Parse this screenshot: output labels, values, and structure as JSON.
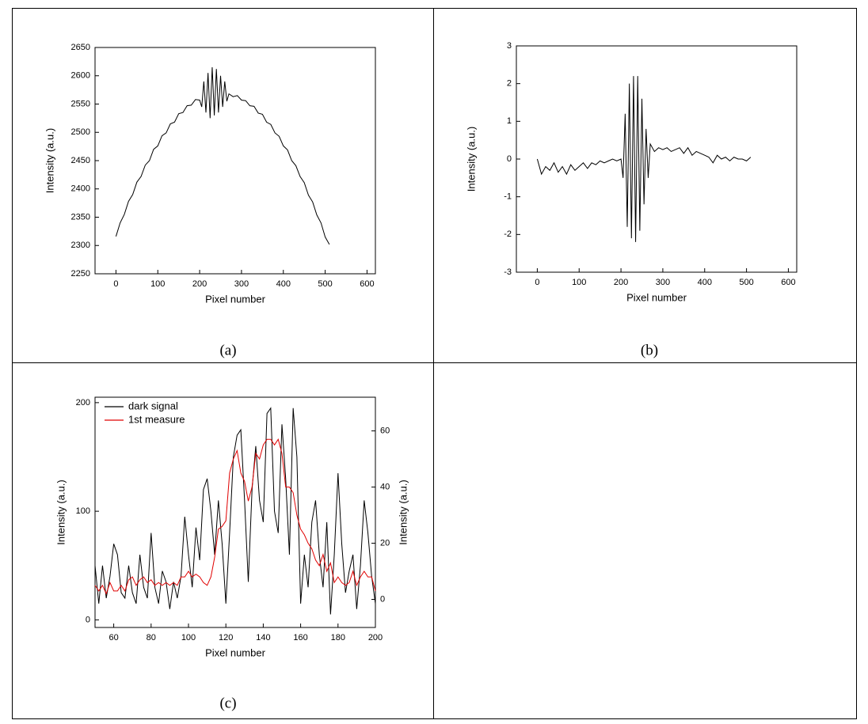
{
  "chart_data": [
    {
      "type": "line",
      "caption": "(a)",
      "xlabel": "Pixel number",
      "ylabel": "Intensity (a.u.)",
      "color": "#000000",
      "x": [
        0,
        10,
        20,
        30,
        40,
        50,
        60,
        70,
        80,
        90,
        100,
        110,
        120,
        130,
        140,
        150,
        160,
        170,
        180,
        190,
        200,
        205,
        210,
        215,
        220,
        225,
        230,
        235,
        240,
        245,
        250,
        255,
        260,
        265,
        270,
        280,
        290,
        300,
        310,
        320,
        330,
        340,
        350,
        360,
        370,
        380,
        390,
        400,
        410,
        420,
        430,
        440,
        450,
        460,
        470,
        480,
        490,
        500,
        510
      ],
      "values": [
        2316,
        2340,
        2355,
        2378,
        2390,
        2412,
        2422,
        2442,
        2450,
        2470,
        2476,
        2494,
        2499,
        2515,
        2518,
        2533,
        2535,
        2547,
        2548,
        2558,
        2557,
        2545,
        2590,
        2535,
        2605,
        2525,
        2615,
        2530,
        2612,
        2535,
        2600,
        2545,
        2590,
        2555,
        2568,
        2563,
        2565,
        2557,
        2556,
        2547,
        2546,
        2534,
        2532,
        2518,
        2514,
        2499,
        2493,
        2476,
        2469,
        2450,
        2441,
        2422,
        2411,
        2389,
        2377,
        2354,
        2340,
        2315,
        2302
      ],
      "xlim": [
        -50,
        620
      ],
      "ylim": [
        2250,
        2650
      ],
      "xticks": [
        0,
        100,
        200,
        300,
        400,
        500,
        600
      ],
      "yticks": [
        2250,
        2300,
        2350,
        2400,
        2450,
        2500,
        2550,
        2600,
        2650
      ]
    },
    {
      "type": "line",
      "caption": "(b)",
      "xlabel": "Pixel number",
      "ylabel": "Intensity (a.u.)",
      "color": "#000000",
      "x": [
        0,
        10,
        20,
        30,
        40,
        50,
        60,
        70,
        80,
        90,
        100,
        110,
        120,
        130,
        140,
        150,
        160,
        170,
        180,
        190,
        200,
        205,
        210,
        215,
        220,
        225,
        230,
        235,
        240,
        245,
        250,
        255,
        260,
        265,
        270,
        280,
        290,
        300,
        310,
        320,
        330,
        340,
        350,
        360,
        370,
        380,
        390,
        400,
        410,
        420,
        430,
        440,
        450,
        460,
        470,
        480,
        490,
        500,
        510
      ],
      "values": [
        0,
        -0.4,
        -0.2,
        -0.3,
        -0.1,
        -0.35,
        -0.2,
        -0.4,
        -0.15,
        -0.3,
        -0.2,
        -0.1,
        -0.25,
        -0.1,
        -0.15,
        -0.05,
        -0.1,
        -0.05,
        0,
        -0.05,
        0,
        -0.5,
        1.2,
        -1.8,
        2.0,
        -2.1,
        2.2,
        -2.2,
        2.2,
        -1.9,
        1.6,
        -1.2,
        0.8,
        -0.5,
        0.4,
        0.2,
        0.3,
        0.25,
        0.3,
        0.2,
        0.25,
        0.3,
        0.15,
        0.3,
        0.1,
        0.2,
        0.15,
        0.1,
        0.05,
        -0.1,
        0.1,
        0,
        0.05,
        -0.05,
        0.05,
        0,
        0,
        -0.05,
        0.05
      ],
      "xlim": [
        -50,
        620
      ],
      "ylim": [
        -3,
        3
      ],
      "xticks": [
        0,
        100,
        200,
        300,
        400,
        500,
        600
      ],
      "yticks": [
        -3,
        -2,
        -1,
        0,
        1,
        2,
        3
      ]
    },
    {
      "type": "line",
      "caption": "(c)",
      "xlabel": "Pixel number",
      "ylabel": "Intensity (a.u.)",
      "y2label": "Intensity (a.u.)",
      "x": [
        50,
        52,
        54,
        56,
        58,
        60,
        62,
        64,
        66,
        68,
        70,
        72,
        74,
        76,
        78,
        80,
        82,
        84,
        86,
        88,
        90,
        92,
        94,
        96,
        98,
        100,
        102,
        104,
        106,
        108,
        110,
        112,
        114,
        116,
        118,
        120,
        122,
        124,
        126,
        128,
        130,
        132,
        134,
        136,
        138,
        140,
        142,
        144,
        146,
        148,
        150,
        152,
        154,
        156,
        158,
        160,
        162,
        164,
        166,
        168,
        170,
        172,
        174,
        176,
        178,
        180,
        182,
        184,
        186,
        188,
        190,
        192,
        194,
        196,
        198,
        200
      ],
      "series": [
        {
          "name": "dark signal",
          "color": "#000000",
          "values": [
            50,
            15,
            50,
            20,
            40,
            70,
            60,
            25,
            20,
            50,
            25,
            15,
            60,
            30,
            20,
            80,
            30,
            15,
            45,
            35,
            10,
            35,
            20,
            40,
            95,
            60,
            30,
            85,
            55,
            120,
            130,
            100,
            60,
            110,
            70,
            15,
            80,
            150,
            170,
            175,
            110,
            35,
            120,
            160,
            110,
            90,
            190,
            195,
            100,
            80,
            180,
            130,
            60,
            195,
            150,
            15,
            60,
            30,
            90,
            110,
            60,
            30,
            90,
            5,
            60,
            135,
            70,
            25,
            45,
            60,
            10,
            50,
            110,
            80,
            40,
            15
          ]
        },
        {
          "name": "1st measure",
          "color": "#e00000",
          "axis": "y2",
          "values": [
            5,
            3,
            5,
            2,
            6,
            3,
            3,
            5,
            3,
            7,
            8,
            5,
            7,
            8,
            6,
            7,
            5,
            6,
            5,
            6,
            5,
            6,
            5,
            8,
            8,
            10,
            8,
            9,
            8,
            6,
            5,
            8,
            15,
            25,
            26,
            28,
            45,
            50,
            53,
            45,
            42,
            35,
            40,
            52,
            50,
            55,
            57,
            57,
            55,
            57,
            52,
            40,
            40,
            38,
            30,
            25,
            23,
            20,
            18,
            14,
            12,
            16,
            10,
            13,
            6,
            8,
            6,
            5,
            6,
            10,
            5,
            8,
            10,
            8,
            8,
            3
          ]
        }
      ],
      "xlim": [
        50,
        200
      ],
      "ylim": [
        -7,
        205
      ],
      "y2lim": [
        -10,
        72
      ],
      "xticks": [
        60,
        80,
        100,
        120,
        140,
        160,
        180,
        200
      ],
      "yticks": [
        0,
        100,
        200
      ],
      "y2ticks": [
        0,
        20,
        40,
        60
      ],
      "legend": "upper left"
    }
  ]
}
